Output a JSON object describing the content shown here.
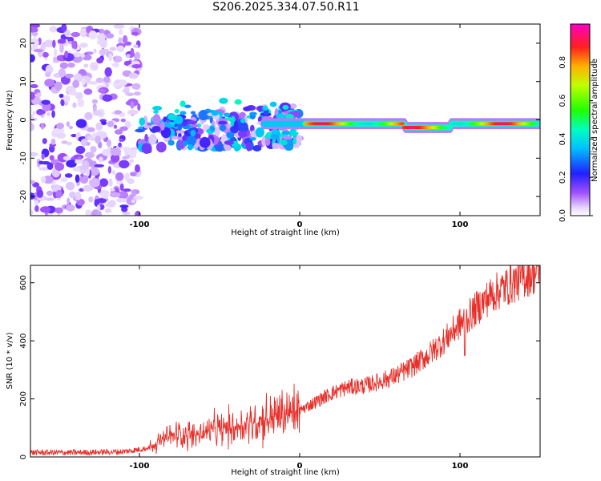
{
  "title": "S206.2025.334.07.50.R11",
  "chart_data": [
    {
      "type": "heatmap",
      "title": "S206.2025.334.07.50.R11",
      "xlabel": "Height of straight line (km)",
      "ylabel": "Frequency (Hz)",
      "xlim": [
        -168,
        150
      ],
      "ylim": [
        -25,
        25
      ],
      "xticks": [
        -100,
        0,
        100
      ],
      "yticks": [
        -20,
        -10,
        0,
        10,
        20
      ],
      "colorbar": {
        "label": "Normalized spectral amplitude",
        "range": [
          0.0,
          1.0
        ],
        "ticks": [
          0.0,
          0.2,
          0.4,
          0.6,
          0.8
        ]
      },
      "features": {
        "scatter_region_x": [
          -168,
          -100
        ],
        "transition_region_x": [
          -100,
          0
        ],
        "strong_signal_x": [
          0,
          150
        ],
        "strong_signal_frequency": -1
      }
    },
    {
      "type": "line",
      "xlabel": "Height of straight line (km)",
      "ylabel": "SNR (10 * v/v)",
      "xlim": [
        -168,
        150
      ],
      "ylim": [
        0,
        660
      ],
      "xticks": [
        -100,
        0,
        100
      ],
      "yticks": [
        0,
        200,
        400,
        600
      ],
      "color": "#e8302a",
      "series": [
        {
          "name": "SNR",
          "x": [
            -168,
            -140,
            -110,
            -95,
            -85,
            -75,
            -65,
            -55,
            -45,
            -35,
            -25,
            -15,
            -5,
            0,
            10,
            20,
            30,
            40,
            50,
            60,
            70,
            80,
            90,
            100,
            103,
            110,
            120,
            130,
            140,
            150
          ],
          "values": [
            15,
            15,
            18,
            30,
            60,
            80,
            75,
            90,
            100,
            110,
            125,
            140,
            150,
            160,
            190,
            220,
            240,
            245,
            260,
            280,
            310,
            350,
            400,
            460,
            470,
            510,
            560,
            590,
            620,
            640
          ]
        }
      ]
    }
  ]
}
